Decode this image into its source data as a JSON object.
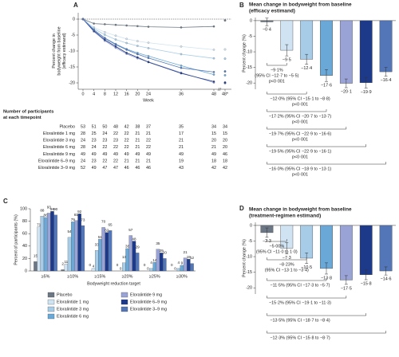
{
  "chart_data": [
    {
      "panel": "A",
      "type": "line",
      "xlabel": "Week",
      "ylabel": [
        "Percent change in",
        "bodyweight from baseline",
        "(efficacy estimand)"
      ],
      "x": [
        0,
        4,
        8,
        12,
        16,
        20,
        24,
        36,
        48
      ],
      "xlim": [
        0,
        48
      ],
      "xticks": [
        0,
        4,
        8,
        12,
        16,
        20,
        24,
        36,
        48
      ],
      "final_tick": "48*",
      "ylim": [
        -22,
        2
      ],
      "yticks": [
        0,
        -5,
        -10,
        -15,
        -20
      ],
      "series": [
        {
          "color": "#6b7785",
          "values": [
            0,
            -1.4,
            -1.6,
            -1.8,
            -2.0,
            -2.2,
            -2.4,
            -2.6,
            -2.3
          ],
          "final_value": -0.4
        },
        {
          "color": "#cfe3f2",
          "values": [
            0,
            -2.6,
            -4.1,
            -5.2,
            -6.2,
            -6.9,
            -7.4,
            -8.6,
            -9.6
          ],
          "final_value": -9.5
        },
        {
          "color": "#a6cce8",
          "values": [
            0,
            -3.0,
            -4.9,
            -6.4,
            -7.5,
            -8.4,
            -9.1,
            -11.0,
            -12.3
          ],
          "final_value": -12.4
        },
        {
          "color": "#6aa8d8",
          "values": [
            0,
            -3.4,
            -5.9,
            -7.8,
            -9.4,
            -10.6,
            -11.6,
            -14.6,
            -17.4
          ],
          "final_value": -17.6
        },
        {
          "color": "#9aa3d6",
          "values": [
            0,
            -3.9,
            -6.8,
            -9.0,
            -10.9,
            -12.3,
            -13.4,
            -16.8,
            -19.9
          ],
          "final_value": -20.1
        },
        {
          "color": "#1d3a8a",
          "values": [
            0,
            -3.7,
            -6.5,
            -8.6,
            -10.6,
            -12.0,
            -13.5,
            -17.0,
            -19.6
          ],
          "final_value": -19.9
        },
        {
          "color": "#5276b8",
          "values": [
            0,
            -3.4,
            -6.0,
            -8.0,
            -9.6,
            -11.0,
            -12.2,
            -15.3,
            -16.6
          ],
          "final_value": -16.4
        }
      ]
    },
    {
      "panel": "B",
      "type": "bar",
      "title": [
        "Mean change in bodyweight from baseline",
        "(efficacy estimand)"
      ],
      "ylabel": [
        "Percent change (%)"
      ],
      "ylim": [
        -22,
        1
      ],
      "yticks": [
        0,
        -5,
        -10,
        -15,
        -20
      ],
      "values": [
        -0.4,
        -9.5,
        -12.4,
        -17.6,
        -20.1,
        -19.9,
        -16.4
      ],
      "value_labels": [
        "−0·4",
        "−9·5",
        "−12·4",
        "−17·6",
        "−20·1",
        "−19·9",
        "−16·4"
      ],
      "errors": [
        1.2,
        1.8,
        1.6,
        1.9,
        1.4,
        1.7,
        1.4
      ],
      "colors": [
        "#6b7785",
        "#cfe3f2",
        "#a6cce8",
        "#6aa8d8",
        "#9aa3d6",
        "#1d3a8a",
        "#5276b8"
      ],
      "comparisons": [
        [
          "−9·1%",
          "(95% CI −12·7 to −5·5)",
          "p<0·001"
        ],
        [
          "−12·0% (95% CI −15·1 to −8·8)",
          "p<0·001"
        ],
        [
          "−17·2% (95% CI −20·7 to −13·7)",
          "p<0·001"
        ],
        [
          "−19·7% (95% CI −22·9 to −16·6)",
          "p<0·001"
        ],
        [
          "−19·5% (95% CI −22·9 to −16·1)",
          "p<0·001"
        ],
        [
          "−16·0% (95% CI −18·9 to −13·1)",
          "p<0·001"
        ]
      ]
    },
    {
      "panel": "C",
      "type": "bar",
      "xlabel": "Bodyweight reduction target",
      "ylabel": [
        "Percent of participants (%)"
      ],
      "categories": [
        "≥5%",
        "≥10%",
        "≥15%",
        "≥20%",
        "≥25%",
        "≥30%"
      ],
      "ylim": [
        0,
        100
      ],
      "yticks": [
        0,
        20,
        40,
        60,
        80,
        100
      ],
      "series": [
        {
          "name": "Placebo",
          "color": "#6b7785",
          "values": [
            15,
            2,
            0,
            0,
            0,
            0
          ]
        },
        {
          "name": "Eloralintide 1 mg",
          "color": "#cfe3f2",
          "values": [
            71,
            11,
            4,
            0,
            0,
            0
          ]
        },
        {
          "name": "Eloralintide 3 mg",
          "color": "#a6cce8",
          "values": [
            88,
            54,
            33,
            13,
            4,
            4
          ]
        },
        {
          "name": "Eloralintide 6 mg",
          "color": "#6aa8d8",
          "values": [
            86,
            79,
            51,
            36,
            14,
            9
          ]
        },
        {
          "name": "Eloralintide 9 mg",
          "color": "#9aa3d6",
          "values": [
            93,
            81,
            70,
            57,
            35,
            21
          ]
        },
        {
          "name": "Eloralintide 6–9 mg",
          "color": "#1d3a8a",
          "values": [
            96,
            92,
            62,
            48,
            29,
            19
          ]
        },
        {
          "name": "Eloralintide 3–9 mg",
          "color": "#5276b8",
          "values": [
            90,
            73,
            65,
            29,
            20,
            12
          ]
        }
      ]
    },
    {
      "panel": "D",
      "type": "bar",
      "title": [
        "Mean change in bodyweight from baseline",
        "(treatment-regimen estimand)"
      ],
      "ylabel": [
        "Percent change (%)"
      ],
      "ylim": [
        -22,
        1
      ],
      "yticks": [
        0,
        -5,
        -10,
        -15,
        -20
      ],
      "values": [
        -2.3,
        -7.3,
        -10.5,
        -13.8,
        -17.5,
        -15.8,
        -14.6
      ],
      "value_labels": [
        "−2·3",
        "−7·3",
        "−10·5",
        "−13·8",
        "−17·5",
        "−15·8",
        "−14·6"
      ],
      "errors": [
        1.5,
        1.8,
        1.7,
        1.8,
        1.4,
        1.6,
        1.3
      ],
      "colors": [
        "#6b7785",
        "#cfe3f2",
        "#a6cce8",
        "#6aa8d8",
        "#9aa3d6",
        "#1d3a8a",
        "#5276b8"
      ],
      "comparisons": [
        [
          "−5·00%",
          "(95% CI −11·0 to 1·0)"
        ],
        [
          "−8·23%",
          "(95% CI −13·1 to −3·4)"
        ],
        [
          "−11·5% (95% CI −17·3 to −5·7)"
        ],
        [
          "−15·2% (95% CI −19·1 to −11·3)"
        ],
        [
          "−13·5% (95% CI −18·7 to −8·4)"
        ],
        [
          "−12·3% (95% CI −15·8 to −8·7)"
        ]
      ]
    }
  ],
  "table": {
    "title": [
      "Number of participants",
      "at each timepoint"
    ],
    "rows": [
      {
        "label": "Placebo",
        "counts": [
          53,
          51,
          50,
          48,
          42,
          38,
          37,
          35,
          34,
          34
        ]
      },
      {
        "label": "Eloralintide 1 mg",
        "counts": [
          28,
          25,
          24,
          22,
          22,
          21,
          21,
          17,
          15,
          15
        ]
      },
      {
        "label": "Eloralintide 3 mg",
        "counts": [
          24,
          23,
          23,
          23,
          22,
          21,
          22,
          21,
          20,
          20
        ]
      },
      {
        "label": "Eloralintide 6 mg",
        "counts": [
          28,
          24,
          22,
          22,
          22,
          21,
          22,
          21,
          21,
          20
        ]
      },
      {
        "label": "Eloralintide 9 mg",
        "counts": [
          49,
          49,
          49,
          49,
          49,
          49,
          49,
          49,
          49,
          46
        ]
      },
      {
        "label": "Eloralintide 6–9 mg",
        "counts": [
          24,
          23,
          22,
          22,
          21,
          21,
          21,
          19,
          18,
          18
        ]
      },
      {
        "label": "Eloralintide 3–9 mg",
        "counts": [
          52,
          49,
          47,
          47,
          46,
          46,
          46,
          43,
          42,
          42
        ]
      }
    ]
  }
}
